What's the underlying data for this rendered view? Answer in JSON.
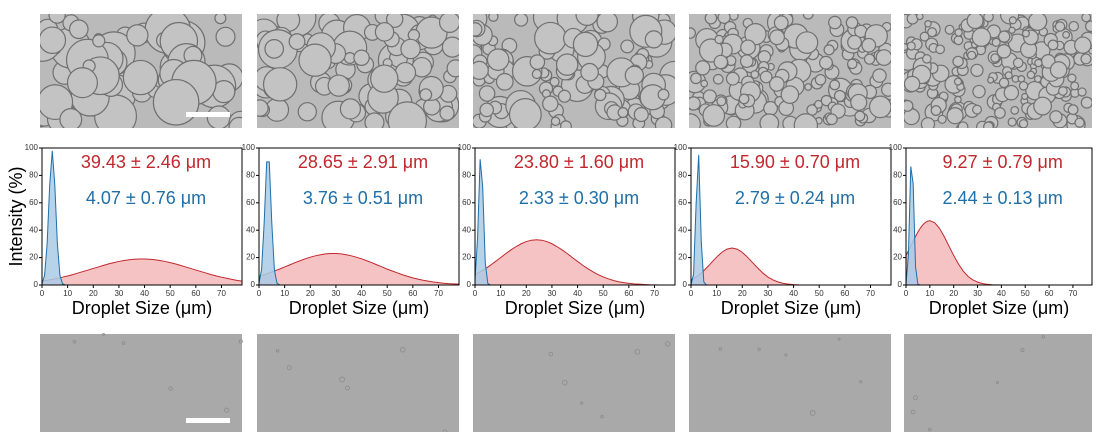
{
  "chart_data": [
    {
      "type": "area",
      "y_label": "Intensity (%)",
      "x_label": "Droplet Size (μm)",
      "xlim": [
        0,
        78
      ],
      "ylim": [
        0,
        100
      ],
      "xticks": [
        0,
        10,
        20,
        30,
        40,
        50,
        60,
        70
      ],
      "yticks": [
        0,
        20,
        40,
        60,
        80,
        100
      ],
      "annotations": [
        {
          "text": "39.43 ± 2.46 μm",
          "color": "#c0282d"
        },
        {
          "text": "4.07 ± 0.76 μm",
          "color": "#1f6fa8"
        }
      ],
      "x": [
        0,
        1,
        2,
        3,
        4,
        5,
        6,
        7,
        8,
        9,
        10,
        12,
        14,
        16,
        18,
        20,
        22,
        24,
        26,
        28,
        30,
        32,
        34,
        36,
        38,
        40,
        42,
        44,
        46,
        48,
        50,
        52,
        54,
        56,
        58,
        60,
        62,
        64,
        66,
        68,
        70,
        72,
        74,
        76,
        78
      ],
      "series": [
        {
          "color": "#c0282d",
          "fill": "#f4b9bb",
          "values": [
            2.8,
            3.1,
            3.4,
            3.8,
            4.1,
            4.5,
            4.9,
            5.3,
            5.7,
            6.2,
            6.6,
            7.6,
            8.7,
            9.8,
            10.9,
            12.1,
            13.2,
            14.3,
            15.4,
            16.3,
            17.2,
            17.9,
            18.4,
            18.8,
            19.0,
            19.0,
            18.8,
            18.4,
            17.9,
            17.2,
            16.3,
            15.4,
            14.3,
            13.2,
            12.1,
            10.9,
            9.8,
            8.7,
            7.6,
            6.6,
            5.7,
            4.9,
            4.1,
            3.4,
            2.8
          ]
        },
        {
          "color": "#1f6fa8",
          "fill": "#a9cbe6",
          "values": [
            0.9,
            6.9,
            30.1,
            72.9,
            98,
            72.9,
            30.1,
            6.9,
            0.9,
            0.1,
            0,
            0,
            0,
            0,
            0,
            0,
            0,
            0,
            0,
            0,
            0,
            0,
            0,
            0,
            0,
            0,
            0,
            0,
            0,
            0,
            0,
            0,
            0,
            0,
            0,
            0,
            0,
            0,
            0,
            0,
            0,
            0,
            0,
            0,
            0
          ]
        }
      ]
    },
    {
      "type": "area",
      "x_label": "Droplet Size (μm)",
      "xlim": [
        0,
        78
      ],
      "ylim": [
        0,
        100
      ],
      "xticks": [
        0,
        10,
        20,
        30,
        40,
        50,
        60,
        70
      ],
      "yticks": [
        0,
        20,
        40,
        60,
        80,
        100
      ],
      "annotations": [
        {
          "text": "28.65 ± 2.91 μm",
          "color": "#c0282d"
        },
        {
          "text": "3.76 ± 0.51 μm",
          "color": "#1f6fa8"
        }
      ],
      "x": [
        0,
        1,
        2,
        3,
        4,
        5,
        6,
        7,
        8,
        9,
        10,
        12,
        14,
        16,
        18,
        20,
        22,
        24,
        26,
        28,
        30,
        32,
        34,
        36,
        38,
        40,
        42,
        44,
        46,
        48,
        50,
        52,
        54,
        56,
        58,
        60,
        62,
        64,
        66,
        68,
        70,
        72,
        74,
        76,
        78
      ],
      "series": [
        {
          "color": "#c0282d",
          "fill": "#f4b9bb",
          "values": [
            6.3,
            6.9,
            7.5,
            8.1,
            8.8,
            9.5,
            10.2,
            10.9,
            11.6,
            12.4,
            13.2,
            14.7,
            16.3,
            17.7,
            19.1,
            20.3,
            21.3,
            22.1,
            22.7,
            23.0,
            23.0,
            22.7,
            22.1,
            21.3,
            20.3,
            19.1,
            17.7,
            16.3,
            14.7,
            13.2,
            11.6,
            10.2,
            8.8,
            7.5,
            6.3,
            5.2,
            4.3,
            3.5,
            2.8,
            2.2,
            1.7,
            1.3,
            1.0,
            0.8,
            0.6
          ]
        },
        {
          "color": "#1f6fa8",
          "fill": "#a9cbe6",
          "values": [
            1.4,
            11.2,
            44.9,
            89.9,
            89.9,
            44.9,
            11.2,
            1.4,
            0.1,
            0,
            0,
            0,
            0,
            0,
            0,
            0,
            0,
            0,
            0,
            0,
            0,
            0,
            0,
            0,
            0,
            0,
            0,
            0,
            0,
            0,
            0,
            0,
            0,
            0,
            0,
            0,
            0,
            0,
            0,
            0,
            0,
            0,
            0,
            0,
            0
          ]
        }
      ]
    },
    {
      "type": "area",
      "x_label": "Droplet Size (μm)",
      "xlim": [
        0,
        78
      ],
      "ylim": [
        0,
        100
      ],
      "xticks": [
        0,
        10,
        20,
        30,
        40,
        50,
        60,
        70
      ],
      "yticks": [
        0,
        20,
        40,
        60,
        80,
        100
      ],
      "annotations": [
        {
          "text": "23.80 ± 1.60 μm",
          "color": "#c0282d"
        },
        {
          "text": "2.33 ± 0.30 μm",
          "color": "#1f6fa8"
        }
      ],
      "x": [
        0,
        1,
        2,
        3,
        4,
        5,
        6,
        7,
        8,
        9,
        10,
        12,
        14,
        16,
        18,
        20,
        22,
        24,
        26,
        28,
        30,
        32,
        34,
        36,
        38,
        40,
        42,
        44,
        46,
        48,
        50,
        52,
        54,
        56,
        58,
        60,
        62,
        64,
        66,
        68,
        70,
        72,
        74,
        76,
        78
      ],
      "series": [
        {
          "color": "#c0282d",
          "fill": "#f4b9bb",
          "values": [
            7.6,
            8.6,
            9.6,
            10.7,
            11.9,
            13.1,
            14.4,
            15.8,
            17.2,
            18.6,
            20.0,
            22.9,
            25.6,
            28.0,
            30.1,
            31.7,
            32.7,
            33,
            32.7,
            31.7,
            30.1,
            28.0,
            25.6,
            22.9,
            20.0,
            17.2,
            14.4,
            11.9,
            9.6,
            7.6,
            5.9,
            4.5,
            3.3,
            2.4,
            1.7,
            1.2,
            0.8,
            0.6,
            0.4,
            0.2,
            0.1,
            0,
            0,
            0,
            0
          ]
        },
        {
          "color": "#1f6fa8",
          "fill": "#a9cbe6",
          "values": [
            3.7,
            34.2,
            91.8,
            71.7,
            16.3,
            1.1,
            0,
            0,
            0,
            0,
            0,
            0,
            0,
            0,
            0,
            0,
            0,
            0,
            0,
            0,
            0,
            0,
            0,
            0,
            0,
            0,
            0,
            0,
            0,
            0,
            0,
            0,
            0,
            0,
            0,
            0,
            0,
            0,
            0,
            0,
            0,
            0,
            0,
            0,
            0
          ]
        }
      ]
    },
    {
      "type": "area",
      "x_label": "Droplet Size (μm)",
      "xlim": [
        0,
        78
      ],
      "ylim": [
        0,
        100
      ],
      "xticks": [
        0,
        10,
        20,
        30,
        40,
        50,
        60,
        70
      ],
      "yticks": [
        0,
        20,
        40,
        60,
        80,
        100
      ],
      "annotations": [
        {
          "text": "15.90 ± 0.70 μm",
          "color": "#c0282d"
        },
        {
          "text": "2.79 ± 0.24 μm",
          "color": "#1f6fa8"
        }
      ],
      "x": [
        0,
        1,
        2,
        3,
        4,
        5,
        6,
        7,
        8,
        9,
        10,
        12,
        14,
        16,
        18,
        20,
        22,
        24,
        26,
        28,
        30,
        32,
        34,
        36,
        38,
        40,
        42,
        44,
        46,
        48,
        50,
        52,
        54,
        56,
        58,
        60,
        62,
        64,
        66,
        68,
        70,
        72,
        74,
        76,
        78
      ],
      "series": [
        {
          "color": "#c0282d",
          "fill": "#f4b9bb",
          "values": [
            3.7,
            4.7,
            5.8,
            7.2,
            8.8,
            10.5,
            12.4,
            14.3,
            16.4,
            18.4,
            20.4,
            23.8,
            26.2,
            27,
            26.2,
            23.8,
            20.4,
            16.4,
            12.4,
            8.8,
            5.8,
            3.7,
            2.2,
            1.2,
            0.6,
            0.3,
            0.1,
            0,
            0,
            0,
            0,
            0,
            0,
            0,
            0,
            0,
            0,
            0,
            0,
            0,
            0,
            0,
            0,
            0,
            0
          ]
        },
        {
          "color": "#1f6fa8",
          "fill": "#a9cbe6",
          "values": [
            0.2,
            7.8,
            59.5,
            95.0,
            31.8,
            2.2,
            0,
            0,
            0,
            0,
            0,
            0,
            0,
            0,
            0,
            0,
            0,
            0,
            0,
            0,
            0,
            0,
            0,
            0,
            0,
            0,
            0,
            0,
            0,
            0,
            0,
            0,
            0,
            0,
            0,
            0,
            0,
            0,
            0,
            0,
            0,
            0,
            0,
            0,
            0
          ]
        }
      ]
    },
    {
      "type": "area",
      "x_label": "Droplet Size (μm)",
      "xlim": [
        0,
        78
      ],
      "ylim": [
        0,
        100
      ],
      "xticks": [
        0,
        10,
        20,
        30,
        40,
        50,
        60,
        70
      ],
      "yticks": [
        0,
        20,
        40,
        60,
        80,
        100
      ],
      "annotations": [
        {
          "text": "9.27 ± 0.79 μm",
          "color": "#c0282d"
        },
        {
          "text": "2.44 ± 0.13 μm",
          "color": "#1f6fa8"
        }
      ],
      "x": [
        0,
        1,
        2,
        3,
        4,
        5,
        6,
        7,
        8,
        9,
        10,
        12,
        14,
        16,
        18,
        20,
        22,
        24,
        26,
        28,
        30,
        32,
        34,
        36,
        38,
        40,
        42,
        44,
        46,
        48,
        50,
        52,
        54,
        56,
        58,
        60,
        62,
        64,
        66,
        68,
        70,
        72,
        74,
        76,
        78
      ],
      "series": [
        {
          "color": "#c0282d",
          "fill": "#f4b9bb",
          "values": [
            21.5,
            25.0,
            28.5,
            32.1,
            35.5,
            38.7,
            41.5,
            43.8,
            45.5,
            46.6,
            47,
            45.5,
            41.5,
            35.5,
            28.5,
            21.5,
            15.3,
            10.2,
            6.3,
            3.8,
            2.1,
            1.1,
            0.5,
            0.2,
            0.1,
            0,
            0,
            0,
            0,
            0,
            0,
            0,
            0,
            0,
            0,
            0,
            0,
            0,
            0,
            0,
            0,
            0,
            0,
            0,
            0
          ]
        },
        {
          "color": "#1f6fa8",
          "fill": "#a9cbe6",
          "values": [
            1.1,
            21.2,
            86.5,
            74.0,
            13.2,
            0.5,
            0,
            0,
            0,
            0,
            0,
            0,
            0,
            0,
            0,
            0,
            0,
            0,
            0,
            0,
            0,
            0,
            0,
            0,
            0,
            0,
            0,
            0,
            0,
            0,
            0,
            0,
            0,
            0,
            0,
            0,
            0,
            0,
            0,
            0,
            0,
            0,
            0,
            0,
            0
          ]
        }
      ]
    }
  ]
}
